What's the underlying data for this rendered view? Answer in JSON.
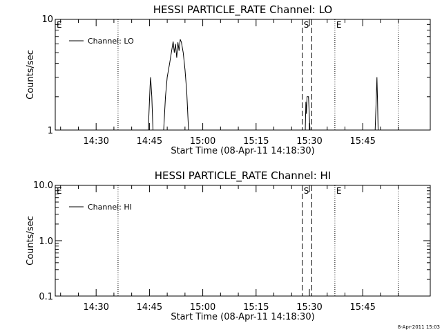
{
  "chart_data": [
    {
      "type": "line",
      "title": "HESSI PARTICLE_RATE Channel: LO",
      "xlabel": "Start Time (08-Apr-11 14:18:30)",
      "ylabel": "Counts/sec",
      "yscale": "log",
      "ylim": [
        1,
        10
      ],
      "ytick_labels": [
        "1",
        "10"
      ],
      "xrange": [
        "14:18:30",
        "16:04:00"
      ],
      "xtick_labels": [
        "14:30",
        "14:45",
        "15:00",
        "15:15",
        "15:30",
        "15:45"
      ],
      "grid": false,
      "legend": {
        "position": "top-left",
        "entries": [
          "Channel: LO"
        ]
      },
      "series": [
        {
          "name": "Channel: LO",
          "points": [
            [
              "14:18:30",
              1
            ],
            [
              "14:44:40",
              1
            ],
            [
              "14:45:10",
              2.5
            ],
            [
              "14:45:20",
              3.0
            ],
            [
              "14:45:40",
              2.0
            ],
            [
              "14:46:00",
              1
            ],
            [
              "14:49:00",
              1
            ],
            [
              "14:49:30",
              2.0
            ],
            [
              "14:50:00",
              3.0
            ],
            [
              "14:50:40",
              4.0
            ],
            [
              "14:51:10",
              5.0
            ],
            [
              "14:51:40",
              6.3
            ],
            [
              "14:52:00",
              5.0
            ],
            [
              "14:52:20",
              6.0
            ],
            [
              "14:52:40",
              4.5
            ],
            [
              "14:53:00",
              6.2
            ],
            [
              "14:53:20",
              5.2
            ],
            [
              "14:53:40",
              6.6
            ],
            [
              "14:54:00",
              6.2
            ],
            [
              "14:54:30",
              5.0
            ],
            [
              "14:55:00",
              3.5
            ],
            [
              "14:55:30",
              2.2
            ],
            [
              "14:56:00",
              1
            ],
            [
              "15:28:50",
              1
            ],
            [
              "15:29:00",
              1.8
            ],
            [
              "15:29:10",
              1.4
            ],
            [
              "15:29:20",
              2.0
            ],
            [
              "15:29:45",
              2.0
            ],
            [
              "15:30:00",
              1.3
            ],
            [
              "15:30:10",
              1
            ],
            [
              "15:48:30",
              1
            ],
            [
              "15:48:50",
              2.0
            ],
            [
              "15:49:00",
              3.0
            ],
            [
              "15:49:10",
              1.8
            ],
            [
              "15:49:20",
              1
            ]
          ]
        }
      ],
      "markers": [
        {
          "time": "14:36:10",
          "style": "dotted",
          "label": ""
        },
        {
          "time": "15:28:00",
          "style": "dashed",
          "label": "S"
        },
        {
          "time": "15:30:40",
          "style": "dashed",
          "label": ""
        },
        {
          "time": "15:37:10",
          "style": "dotted",
          "label": "E"
        },
        {
          "time": "15:55:00",
          "style": "dotted",
          "label": ""
        }
      ],
      "left_edge_label": "E"
    },
    {
      "type": "line",
      "title": "HESSI PARTICLE_RATE Channel: HI",
      "xlabel": "Start Time (08-Apr-11 14:18:30)",
      "ylabel": "Counts/sec",
      "yscale": "log",
      "ylim": [
        0.1,
        10
      ],
      "ytick_labels": [
        "0.1",
        "1.0",
        "10.0"
      ],
      "xrange": [
        "14:18:30",
        "16:04:00"
      ],
      "xtick_labels": [
        "14:30",
        "14:45",
        "15:00",
        "15:15",
        "15:30",
        "15:45"
      ],
      "grid": false,
      "legend": {
        "position": "top-left",
        "entries": [
          "Channel: HI"
        ]
      },
      "series": [
        {
          "name": "Channel: HI",
          "points": []
        }
      ],
      "markers": [
        {
          "time": "14:36:10",
          "style": "dotted",
          "label": ""
        },
        {
          "time": "15:28:00",
          "style": "dashed",
          "label": "S"
        },
        {
          "time": "15:30:40",
          "style": "dashed",
          "label": ""
        },
        {
          "time": "15:37:10",
          "style": "dotted",
          "label": "E"
        },
        {
          "time": "15:55:00",
          "style": "dotted",
          "label": ""
        }
      ],
      "left_edge_label": "E"
    }
  ],
  "footer": {
    "timestamp": "8-Apr-2011 15:03"
  }
}
